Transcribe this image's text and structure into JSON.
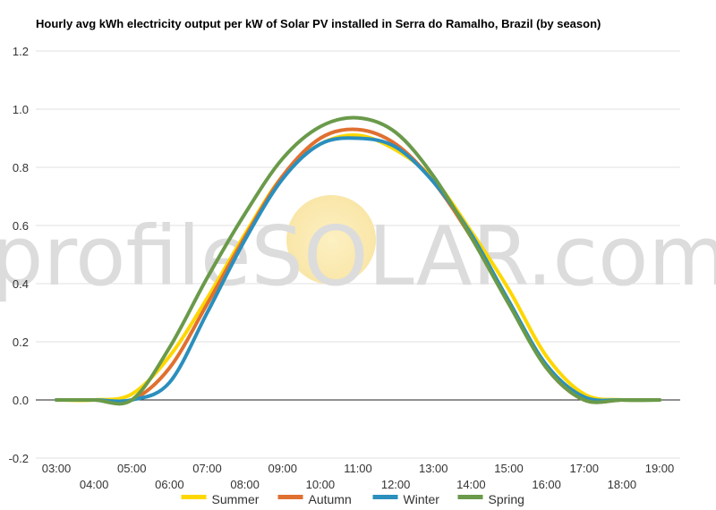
{
  "chart_data": {
    "type": "line",
    "title": "Hourly avg kWh electricity output per kW of Solar PV installed in Serra do Ramalho, Brazil (by season)",
    "xlabel": "",
    "ylabel": "",
    "x_ticks": [
      "03:00",
      "04:00",
      "05:00",
      "06:00",
      "07:00",
      "08:00",
      "09:00",
      "10:00",
      "11:00",
      "12:00",
      "13:00",
      "14:00",
      "15:00",
      "16:00",
      "17:00",
      "18:00",
      "19:00"
    ],
    "x_range": [
      3,
      19
    ],
    "ylim": [
      -0.2,
      1.2
    ],
    "y_ticks": [
      "-0.2",
      "0.0",
      "0.2",
      "0.4",
      "0.6",
      "0.8",
      "1.0",
      "1.2"
    ],
    "grid": "horizontal",
    "legend_position": "bottom",
    "watermark": "profileSOLAR.com",
    "series": [
      {
        "name": "Summer",
        "color": "#ffd700",
        "x": [
          3,
          4,
          5,
          6,
          7,
          8,
          9,
          10,
          11,
          12,
          13,
          14,
          15,
          16,
          17,
          18,
          19
        ],
        "values": [
          0,
          0,
          0.02,
          0.15,
          0.35,
          0.57,
          0.77,
          0.88,
          0.91,
          0.86,
          0.76,
          0.58,
          0.38,
          0.15,
          0.02,
          0,
          0
        ]
      },
      {
        "name": "Autumn",
        "color": "#e07030",
        "x": [
          3,
          4,
          5,
          6,
          7,
          8,
          9,
          10,
          11,
          12,
          13,
          14,
          15,
          16,
          17,
          18,
          19
        ],
        "values": [
          0,
          0,
          0,
          0.11,
          0.33,
          0.56,
          0.77,
          0.9,
          0.93,
          0.88,
          0.75,
          0.56,
          0.34,
          0.11,
          0,
          0,
          0
        ]
      },
      {
        "name": "Winter",
        "color": "#2a8fbd",
        "x": [
          3,
          4,
          5,
          6,
          7,
          8,
          9,
          10,
          11,
          12,
          13,
          14,
          15,
          16,
          17,
          18,
          19
        ],
        "values": [
          0,
          0,
          0,
          0.06,
          0.3,
          0.55,
          0.76,
          0.88,
          0.9,
          0.87,
          0.75,
          0.57,
          0.34,
          0.12,
          0.01,
          0,
          0
        ]
      },
      {
        "name": "Spring",
        "color": "#6a9a4a",
        "x": [
          3,
          4,
          5,
          6,
          7,
          8,
          9,
          10,
          11,
          12,
          13,
          14,
          15,
          16,
          17,
          18,
          19
        ],
        "values": [
          0,
          0,
          0,
          0.18,
          0.42,
          0.64,
          0.83,
          0.94,
          0.97,
          0.92,
          0.77,
          0.56,
          0.33,
          0.11,
          0,
          0,
          0
        ]
      }
    ]
  }
}
